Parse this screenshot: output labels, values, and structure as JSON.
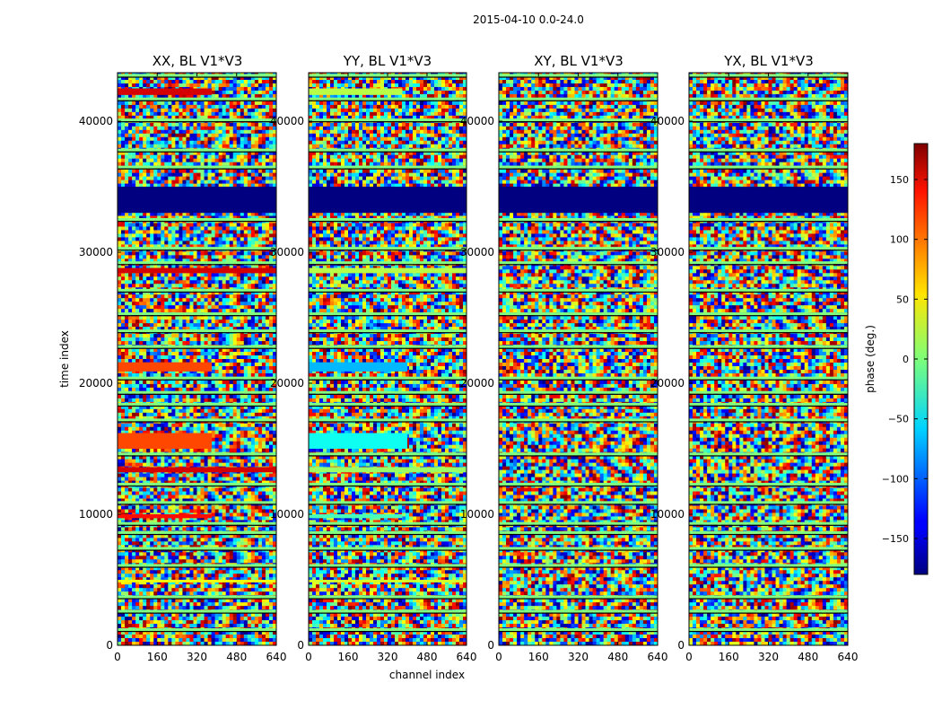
{
  "chart_data": {
    "type": "heatmap",
    "suptitle": "2015-04-10 0.0-24.0",
    "xlabel": "channel index",
    "ylabel": "time index",
    "xlim": [
      0,
      640
    ],
    "ylim": [
      0,
      43700
    ],
    "xticks": [
      "0",
      "160",
      "320",
      "480",
      "640"
    ],
    "xtick_values": [
      0,
      160,
      320,
      480,
      640
    ],
    "yticks": [
      "0",
      "10000",
      "20000",
      "30000",
      "40000"
    ],
    "ytick_values": [
      0,
      10000,
      20000,
      30000,
      40000
    ],
    "colorbar": {
      "label": "phase (deg.)",
      "range": [
        -180,
        180
      ],
      "ticks": [
        "−150",
        "−100",
        "−50",
        "0",
        "50",
        "100",
        "150"
      ],
      "tick_values": [
        -150,
        -100,
        -50,
        0,
        50,
        100,
        150
      ],
      "colormap": "jet"
    },
    "panels": [
      {
        "title": "XX, BL V1*V3",
        "bands": [
          {
            "t0": 33000,
            "t1": 35000,
            "phase": -180,
            "kind": "solid"
          },
          {
            "t0": 42000,
            "t1": 42500,
            "phase": 150,
            "kind": "partial",
            "c1": 380
          },
          {
            "t0": 28400,
            "t1": 28800,
            "phase": 150,
            "kind": "partial",
            "c1": 640
          },
          {
            "t0": 20900,
            "t1": 21600,
            "phase": 110,
            "kind": "partial",
            "c1": 380
          },
          {
            "t0": 15000,
            "t1": 16200,
            "phase": 110,
            "kind": "partial",
            "c1": 380
          },
          {
            "t0": 13200,
            "t1": 13600,
            "phase": 150,
            "kind": "partial",
            "c1": 640
          },
          {
            "t0": 9700,
            "t1": 10000,
            "phase": 130,
            "kind": "partial",
            "c1": 380
          },
          {
            "t0": 4800,
            "t1": 5000,
            "phase": 40,
            "kind": "partial",
            "c1": 640
          }
        ]
      },
      {
        "title": "YY, BL V1*V3",
        "bands": [
          {
            "t0": 33000,
            "t1": 35000,
            "phase": -180,
            "kind": "solid"
          },
          {
            "t0": 42000,
            "t1": 42500,
            "phase": 20,
            "kind": "partial",
            "c1": 380
          },
          {
            "t0": 28400,
            "t1": 28800,
            "phase": 20,
            "kind": "partial",
            "c1": 640
          },
          {
            "t0": 20900,
            "t1": 21600,
            "phase": -70,
            "kind": "partial",
            "c1": 400
          },
          {
            "t0": 15000,
            "t1": 16200,
            "phase": -40,
            "kind": "partial",
            "c1": 400
          },
          {
            "t0": 13200,
            "t1": 13600,
            "phase": 10,
            "kind": "partial",
            "c1": 640
          },
          {
            "t0": 9700,
            "t1": 10000,
            "phase": -20,
            "kind": "partial",
            "c1": 380
          },
          {
            "t0": 4800,
            "t1": 5000,
            "phase": 30,
            "kind": "partial",
            "c1": 640
          }
        ]
      },
      {
        "title": "XY, BL V1*V3",
        "bands": [
          {
            "t0": 33000,
            "t1": 35000,
            "phase": -180,
            "kind": "solid"
          }
        ]
      },
      {
        "title": "YX, BL V1*V3",
        "bands": [
          {
            "t0": 33000,
            "t1": 35000,
            "phase": -180,
            "kind": "solid"
          }
        ]
      }
    ],
    "flagged_rows": [
      43500,
      41700,
      40100,
      37800,
      36500,
      32500,
      30300,
      29200,
      27100,
      25300,
      24000,
      22800,
      20400,
      19300,
      18400,
      17200,
      14600,
      12300,
      10900,
      9300,
      8600,
      7400,
      6100,
      3700,
      2600,
      1200
    ]
  }
}
